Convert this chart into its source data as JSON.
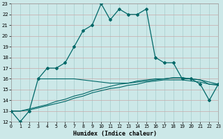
{
  "xlabel": "Humidex (Indice chaleur)",
  "background_color": "#cce8e8",
  "line_color": "#006868",
  "grid_color_v": "#a8cccc",
  "grid_color_h": "#c8a8a8",
  "xlim": [
    0,
    23
  ],
  "ylim": [
    12,
    23
  ],
  "xticks": [
    0,
    1,
    2,
    3,
    4,
    5,
    6,
    7,
    8,
    9,
    10,
    11,
    12,
    13,
    14,
    15,
    16,
    17,
    18,
    19,
    20,
    21,
    22,
    23
  ],
  "yticks": [
    12,
    13,
    14,
    15,
    16,
    17,
    18,
    19,
    20,
    21,
    22,
    23
  ],
  "main_x": [
    0,
    1,
    2,
    3,
    4,
    5,
    6,
    7,
    8,
    9,
    10,
    11,
    12,
    13,
    14,
    15,
    16,
    17,
    18,
    19,
    20,
    21,
    22,
    23
  ],
  "main_y": [
    13,
    12,
    13,
    16,
    17,
    17,
    17.5,
    19,
    20.5,
    21,
    23,
    21.5,
    22.5,
    22,
    22,
    22.5,
    18,
    17.5,
    17.5,
    16,
    16,
    15.5,
    14,
    15.5
  ],
  "flat1_x": [
    3,
    4,
    5,
    6,
    7,
    8,
    9,
    10,
    11,
    12,
    13,
    14,
    15,
    16,
    17,
    18,
    19,
    20,
    21,
    22,
    23
  ],
  "flat1_y": [
    16,
    16,
    16,
    16,
    16,
    15.9,
    15.8,
    15.7,
    15.6,
    15.6,
    15.6,
    15.7,
    15.8,
    15.9,
    16.0,
    16.1,
    16.1,
    16.0,
    15.9,
    15.5,
    15.5
  ],
  "flat2_x": [
    0,
    1,
    2,
    3,
    4,
    5,
    6,
    7,
    8,
    9,
    10,
    11,
    12,
    13,
    14,
    15,
    16,
    17,
    18,
    19,
    20,
    21,
    22,
    23
  ],
  "flat2_y": [
    13,
    13,
    13.2,
    13.4,
    13.6,
    13.9,
    14.1,
    14.4,
    14.6,
    14.9,
    15.1,
    15.3,
    15.5,
    15.6,
    15.8,
    15.9,
    16.0,
    16.0,
    16.1,
    16.1,
    16.0,
    15.9,
    15.7,
    15.5
  ],
  "flat3_x": [
    0,
    1,
    2,
    3,
    4,
    5,
    6,
    7,
    8,
    9,
    10,
    11,
    12,
    13,
    14,
    15,
    16,
    17,
    18,
    19,
    20,
    21,
    22,
    23
  ],
  "flat3_y": [
    13,
    13,
    13.1,
    13.3,
    13.5,
    13.7,
    13.9,
    14.2,
    14.4,
    14.7,
    14.9,
    15.1,
    15.2,
    15.4,
    15.5,
    15.7,
    15.8,
    15.9,
    15.9,
    15.9,
    15.8,
    15.7,
    15.5,
    15.4
  ]
}
